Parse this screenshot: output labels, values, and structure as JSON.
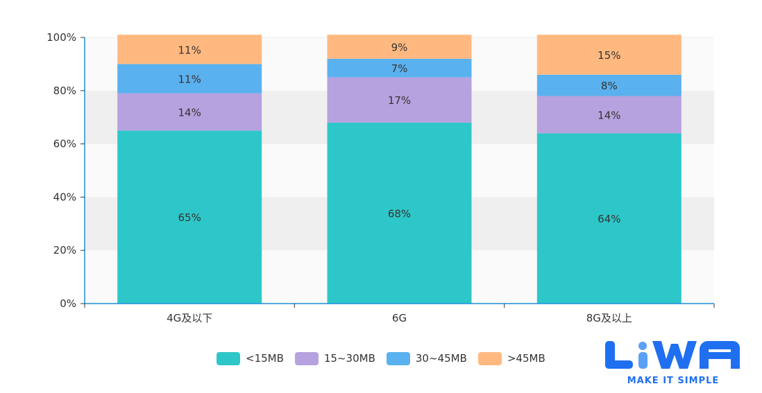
{
  "chart_data": {
    "type": "bar",
    "stacked": true,
    "title": "",
    "xlabel": "",
    "ylabel": "",
    "ylim": [
      0,
      100
    ],
    "y_ticks": [
      "0%",
      "20%",
      "40%",
      "60%",
      "80%",
      "100%"
    ],
    "categories": [
      "4G及以下",
      "6G",
      "8G及以上"
    ],
    "series": [
      {
        "name": "<15MB",
        "color": "#2ec7c9",
        "values": [
          65,
          68,
          64
        ],
        "labels": [
          "65%",
          "68%",
          "64%"
        ]
      },
      {
        "name": "15~30MB",
        "color": "#b6a2de",
        "values": [
          14,
          17,
          14
        ],
        "labels": [
          "14%",
          "17%",
          "14%"
        ]
      },
      {
        "name": "30~45MB",
        "color": "#5ab1ef",
        "values": [
          11,
          7,
          8
        ],
        "labels": [
          "11%",
          "7%",
          "8%"
        ]
      },
      {
        "name": ">45MB",
        "color": "#ffb980",
        "values": [
          11,
          9,
          15
        ],
        "labels": [
          "11%",
          "9%",
          "15%"
        ]
      }
    ],
    "legend_position": "bottom",
    "grid": "alternating-bands"
  },
  "logo": {
    "brand": "LiWA",
    "tagline": "MAKE IT SIMPLE",
    "color": "#1f6ff0"
  }
}
